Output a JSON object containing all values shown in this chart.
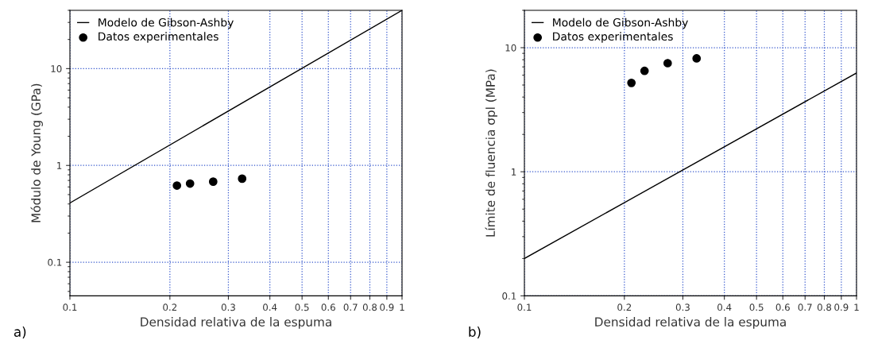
{
  "chart_data": [
    {
      "type": "scatter",
      "xlabel": "Densidad relativa de la espuma",
      "ylabel": "Módulo de Young (GPa)",
      "log": "xy",
      "grid": true,
      "legend": "top left",
      "xlim": [
        0.1,
        1
      ],
      "xticks": [
        0.1,
        0.2,
        0.3,
        0.4,
        0.5,
        0.6,
        0.7,
        0.8,
        0.9,
        1
      ],
      "ylim": [
        0.045,
        40
      ],
      "yticks": [
        0.1,
        1,
        10
      ],
      "series": [
        {
          "name": "Modelo de Gibson-Ashby",
          "type": "line",
          "marker": "none",
          "color": "#000000",
          "x": [
            0.1,
            1
          ],
          "values": [
            0.41,
            40
          ]
        },
        {
          "name": "Datos experimentales",
          "marker": "circle",
          "color": "#000000",
          "x": [
            0.21,
            0.23,
            0.27,
            0.33
          ],
          "values": [
            0.62,
            0.65,
            0.68,
            0.73
          ]
        }
      ],
      "annotations": [
        "a)"
      ]
    },
    {
      "type": "scatter",
      "xlabel": "Densidad relativa de la espuma",
      "ylabel": "Límite de fluencia σpl (MPa)",
      "log": "xy",
      "grid": true,
      "legend": "top left",
      "xlim": [
        0.1,
        1
      ],
      "xticks": [
        0.1,
        0.2,
        0.3,
        0.4,
        0.5,
        0.6,
        0.7,
        0.8,
        0.9,
        1
      ],
      "ylim": [
        0.1,
        20
      ],
      "yticks": [
        0.1,
        1,
        10
      ],
      "series": [
        {
          "name": "Modelo de Gibson-Ashby",
          "type": "line",
          "marker": "none",
          "color": "#000000",
          "x": [
            0.1,
            1
          ],
          "values": [
            0.2,
            6.25
          ]
        },
        {
          "name": "Datos experimentales",
          "marker": "circle",
          "color": "#000000",
          "x": [
            0.21,
            0.23,
            0.27,
            0.33
          ],
          "values": [
            5.2,
            6.5,
            7.5,
            8.2
          ]
        }
      ],
      "annotations": [
        "b)"
      ]
    }
  ]
}
